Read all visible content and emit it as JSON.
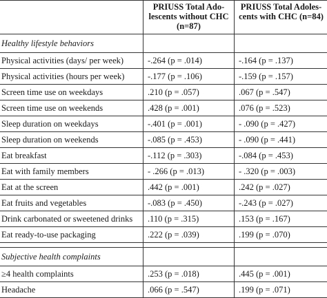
{
  "header": {
    "col1": "",
    "col2": "PRIUSS Total Ado-lescents without CHC (n=87)",
    "col3": "PRIUSS Total Adoles-cents with CHC (n=84)"
  },
  "sections": [
    {
      "title": "Healthy lifestyle behaviors",
      "rows": [
        {
          "label": "Physical activities (days/ per week)",
          "without": "-.264 (p = .014)",
          "with": "-.164 (p = .137)"
        },
        {
          "label": "Physical activities (hours per week)",
          "without": "-.177 (p = .106)",
          "with": "-.159 (p = .157)"
        },
        {
          "label": "Screen time use on weekdays",
          "without": ".210 (p = .057)",
          "with": ".067 (p = .547)"
        },
        {
          "label": "Screen time use on weekends",
          "without": ".428 (p = .001)",
          "with": ".076 (p = .523)"
        },
        {
          "label": "Sleep duration on weekdays",
          "without": "-.401 (p = .001)",
          "with": "- .090 (p = .427)"
        },
        {
          "label": "Sleep duration on weekends",
          "without": "-.085 (p = .453)",
          "with": "- .090 (p = .441)"
        },
        {
          "label": "Eat breakfast",
          "without": "-.112 (p = .303)",
          "with": "-.084 (p = .453)"
        },
        {
          "label": "Eat with family members",
          "without": "- .266 (p = .013)",
          "with": "- .320 (p = .003)"
        },
        {
          "label": "Eat at the screen",
          "without": ".442 (p = .001)",
          "with": ".242 (p = .027)"
        },
        {
          "label": "Eat fruits and vegetables",
          "without": "-.083 (p = .450)",
          "with": "-.243 (p = .027)"
        },
        {
          "label": "Drink carbonated or sweetened drinks",
          "without": ".110 (p = .315)",
          "with": ".153 (p = .167)"
        },
        {
          "label": "Eat ready-to-use packaging",
          "without": ".222 (p = .039)",
          "with": ".199 (p = .070)"
        }
      ]
    },
    {
      "title": "Subjective health complaints",
      "rows": [
        {
          "label": "≥4 health complaints",
          "without": ".253 (p = .018)",
          "with": ".445 (p = .001)"
        },
        {
          "label": "Headache",
          "without": ".066 (p = .547)",
          "with": ".199 (p = .071)"
        }
      ]
    }
  ]
}
